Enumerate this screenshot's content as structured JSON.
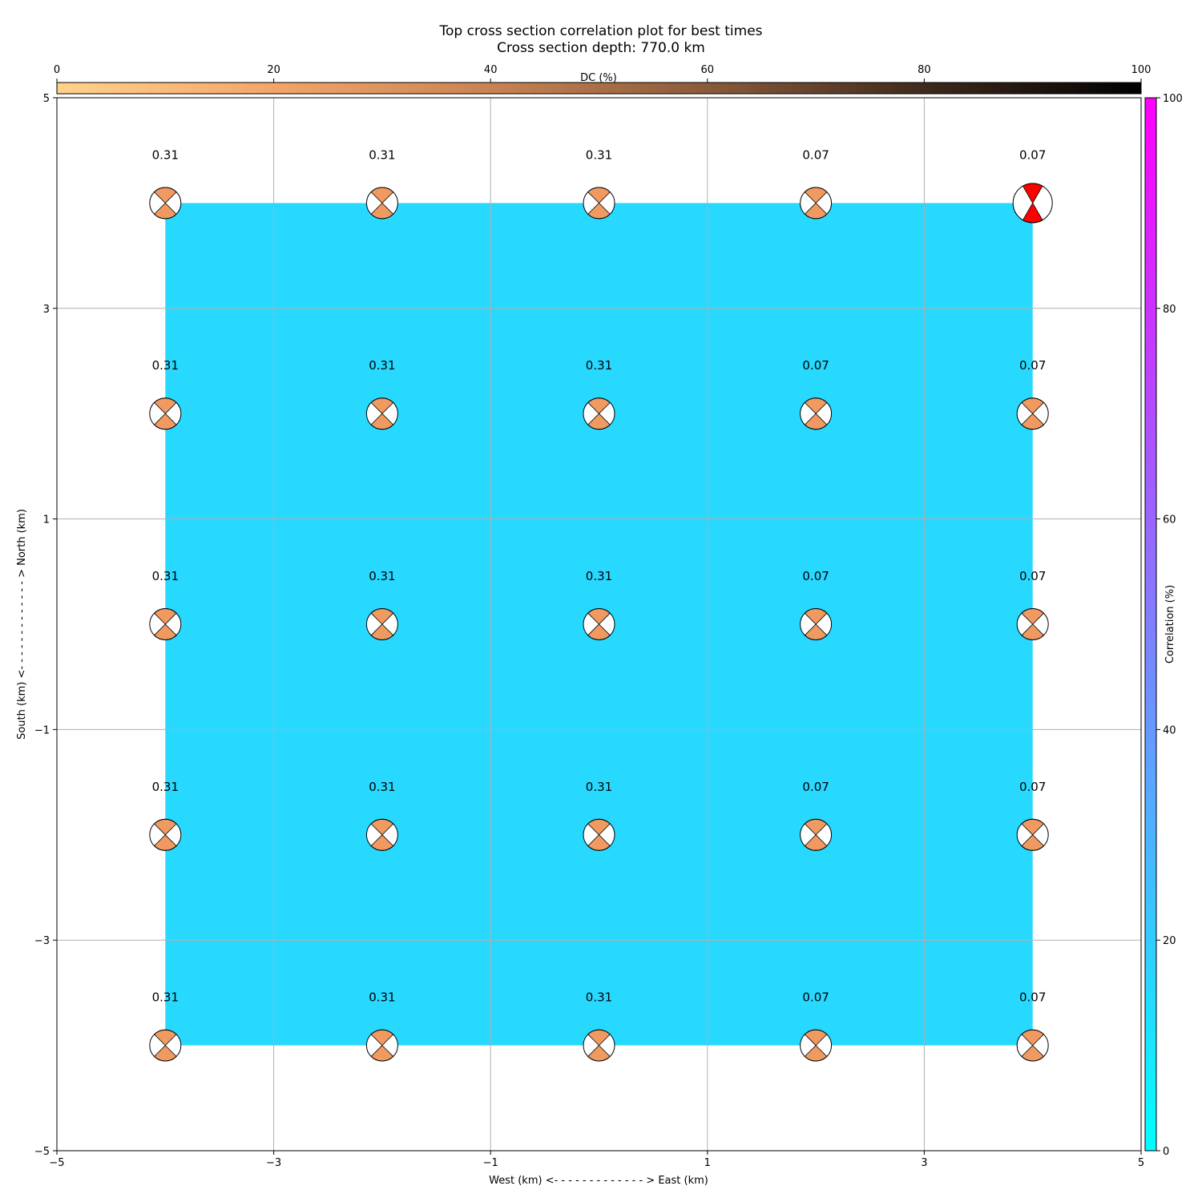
{
  "chart_data": {
    "type": "scatter",
    "title": "Top cross section correlation plot for best times",
    "subtitle": "Cross section depth: 770.0 km",
    "xlabel": "West (km) <- - - - - - - - - - - - - > East (km)",
    "ylabel": "South (km) <- - - - - - - - - - - - - > North (km)",
    "xlim": [
      -5,
      5
    ],
    "ylim": [
      -5,
      5
    ],
    "xticks": [
      "−5",
      "−3",
      "−1",
      "1",
      "3",
      "5"
    ],
    "yticks": [
      "−5",
      "−3",
      "−1",
      "1",
      "3",
      "5"
    ],
    "grid": true,
    "background": {
      "x_range": [
        -4,
        4
      ],
      "y_range": [
        -4,
        4
      ],
      "correlation_percent": 20,
      "color": "#27d8ff"
    },
    "dc_colorbar": {
      "label": "DC (%)",
      "placement": "top",
      "range": [
        0,
        100
      ],
      "ticks": [
        "0",
        "20",
        "40",
        "60",
        "80",
        "100"
      ],
      "color_start": "#ffd28a",
      "color_end": "#000000"
    },
    "correlation_colorbar": {
      "label": "Correlation (%)",
      "placement": "right",
      "range": [
        0,
        100
      ],
      "ticks": [
        "0",
        "20",
        "40",
        "60",
        "80",
        "100"
      ],
      "color_start": "#00ffff",
      "color_end": "#ff00ff"
    },
    "beachball_fill": "#f09a62",
    "best_fill": "#ff0000",
    "x": [
      -4,
      -2,
      0,
      2,
      4
    ],
    "y": [
      4,
      2,
      0,
      -2,
      -4
    ],
    "labels": [
      [
        "0.31",
        "0.31",
        "0.31",
        "0.07",
        "0.07"
      ],
      [
        "0.31",
        "0.31",
        "0.31",
        "0.07",
        "0.07"
      ],
      [
        "0.31",
        "0.31",
        "0.31",
        "0.07",
        "0.07"
      ],
      [
        "0.31",
        "0.31",
        "0.31",
        "0.07",
        "0.07"
      ],
      [
        "0.31",
        "0.31",
        "0.31",
        "0.07",
        "0.07"
      ]
    ],
    "best_point": {
      "x": 4,
      "y": 4
    }
  }
}
